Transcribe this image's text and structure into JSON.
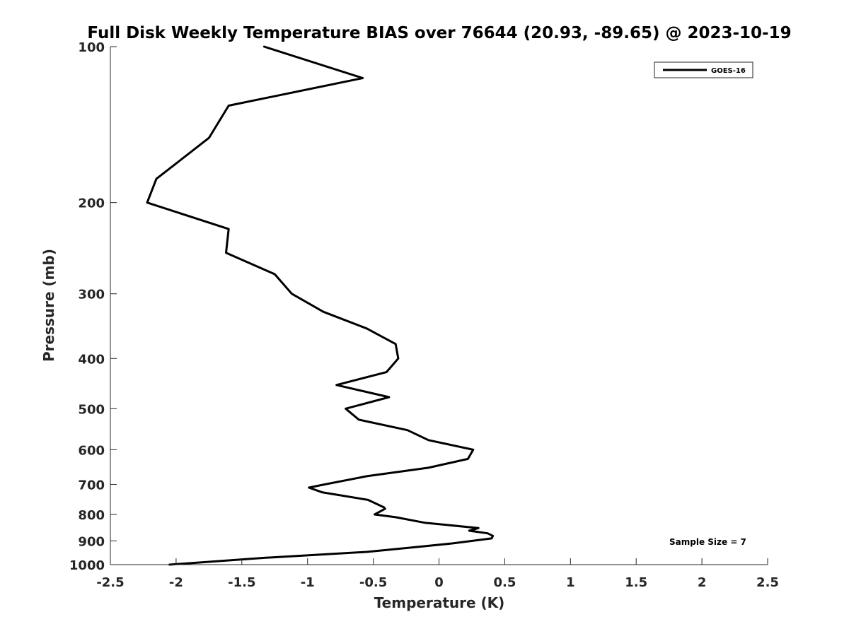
{
  "chart_data": {
    "type": "line",
    "title": "Full Disk Weekly Temperature BIAS over 76644 (20.93, -89.65) @ 2023-10-19",
    "xlabel": "Temperature (K)",
    "ylabel": "Pressure (mb)",
    "xlim": [
      -2.5,
      2.5
    ],
    "ylim": [
      100,
      1000
    ],
    "y_scale": "log",
    "y_reversed": true,
    "grid": false,
    "legend_position": "top-right",
    "xticks": [
      -2.5,
      -2,
      -1.5,
      -1,
      -0.5,
      0,
      0.5,
      1,
      1.5,
      2,
      2.5
    ],
    "xtick_labels": [
      "-2.5",
      "-2",
      "-1.5",
      "-1",
      "-0.5",
      "0",
      "0.5",
      "1",
      "1.5",
      "2",
      "2.5"
    ],
    "yticks": [
      100,
      200,
      300,
      400,
      500,
      600,
      700,
      800,
      900,
      1000
    ],
    "ytick_labels": [
      "100",
      "200",
      "300",
      "400",
      "500",
      "600",
      "700",
      "800",
      "900",
      "1000"
    ],
    "annotation": "Sample Size = 7",
    "series": [
      {
        "name": "GOES-16",
        "color": "#000000",
        "points": [
          [
            -1.33,
            100
          ],
          [
            -0.58,
            115
          ],
          [
            -1.6,
            130
          ],
          [
            -1.75,
            150
          ],
          [
            -2.15,
            180
          ],
          [
            -2.22,
            200
          ],
          [
            -1.6,
            225
          ],
          [
            -1.62,
            250
          ],
          [
            -1.25,
            275
          ],
          [
            -1.12,
            300
          ],
          [
            -0.88,
            325
          ],
          [
            -0.55,
            350
          ],
          [
            -0.33,
            375
          ],
          [
            -0.31,
            400
          ],
          [
            -0.4,
            425
          ],
          [
            -0.78,
            450
          ],
          [
            -0.38,
            475
          ],
          [
            -0.71,
            500
          ],
          [
            -0.61,
            525
          ],
          [
            -0.24,
            550
          ],
          [
            -0.08,
            575
          ],
          [
            0.26,
            600
          ],
          [
            0.22,
            625
          ],
          [
            -0.08,
            650
          ],
          [
            -0.55,
            675
          ],
          [
            -0.87,
            700
          ],
          [
            -0.99,
            710
          ],
          [
            -0.89,
            725
          ],
          [
            -0.54,
            750
          ],
          [
            -0.42,
            775
          ],
          [
            -0.41,
            780
          ],
          [
            -0.49,
            800
          ],
          [
            -0.33,
            810
          ],
          [
            -0.11,
            830
          ],
          [
            0.3,
            850
          ],
          [
            0.23,
            860
          ],
          [
            0.37,
            870
          ],
          [
            0.41,
            880
          ],
          [
            0.4,
            890
          ],
          [
            0.1,
            910
          ],
          [
            -0.18,
            925
          ],
          [
            -0.55,
            945
          ],
          [
            -1.32,
            970
          ],
          [
            -2.05,
            1000
          ]
        ]
      }
    ]
  }
}
